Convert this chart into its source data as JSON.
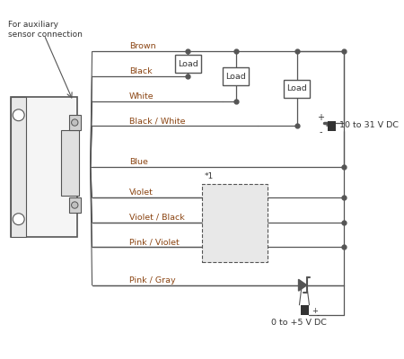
{
  "bg_color": "#ffffff",
  "line_color": "#555555",
  "label_color": "#8B4513",
  "wire_labels": [
    "Brown",
    "Black",
    "White",
    "Black / White",
    "Blue",
    "Violet",
    "Violet / Black",
    "Pink / Violet",
    "Pink / Gray"
  ],
  "sensor_label": "For auxiliary\nsensor connection",
  "power_label": "10 to 31 V DC",
  "power2_label": "0 to +5 V DC",
  "note_label": "*1"
}
